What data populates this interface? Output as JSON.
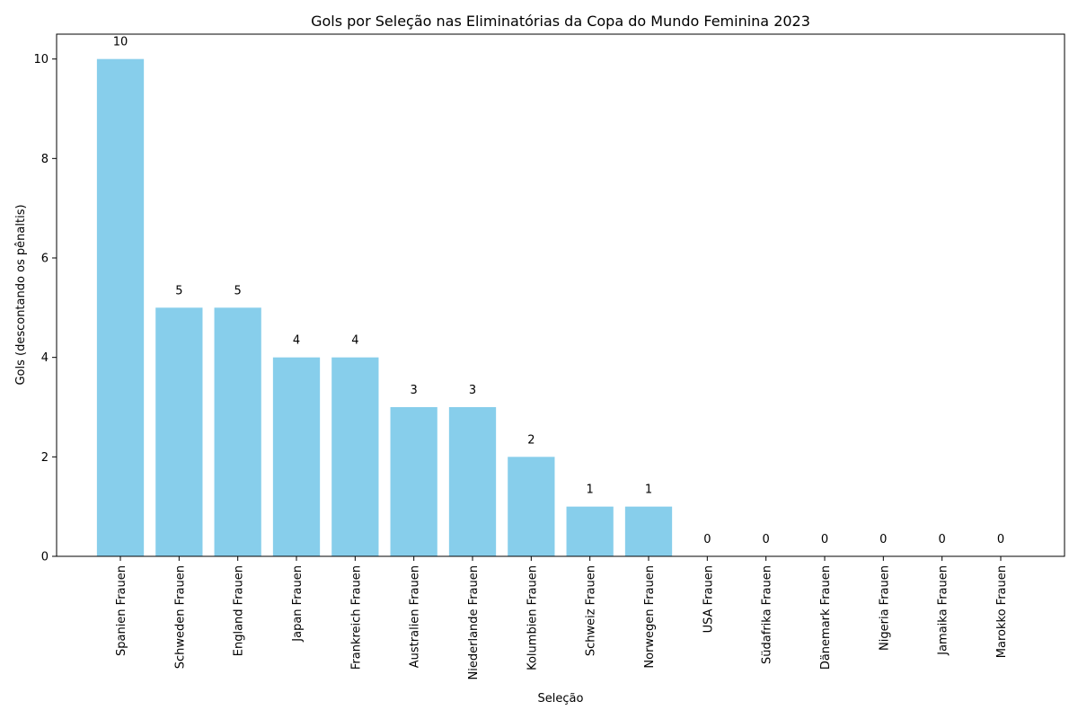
{
  "chart_data": {
    "type": "bar",
    "title": "Gols por Seleção nas Eliminatórias da Copa do Mundo Feminina 2023",
    "xlabel": "Seleção",
    "ylabel": "Gols (descontando os pênaltis)",
    "ylim": [
      0,
      10.5
    ],
    "yticks": [
      0,
      2,
      4,
      6,
      8,
      10
    ],
    "grid": false,
    "bar_color": "#87ceeb",
    "categories": [
      "Spanien Frauen",
      "Schweden Frauen",
      "England Frauen",
      "Japan Frauen",
      "Frankreich Frauen",
      "Australien Frauen",
      "Niederlande Frauen",
      "Kolumbien Frauen",
      "Schweiz Frauen",
      "Norwegen Frauen",
      "USA Frauen",
      "Südafrika Frauen",
      "Dänemark Frauen",
      "Nigeria Frauen",
      "Jamaika Frauen",
      "Marokko Frauen"
    ],
    "values": [
      10,
      5,
      5,
      4,
      4,
      3,
      3,
      2,
      1,
      1,
      0,
      0,
      0,
      0,
      0,
      0
    ]
  }
}
